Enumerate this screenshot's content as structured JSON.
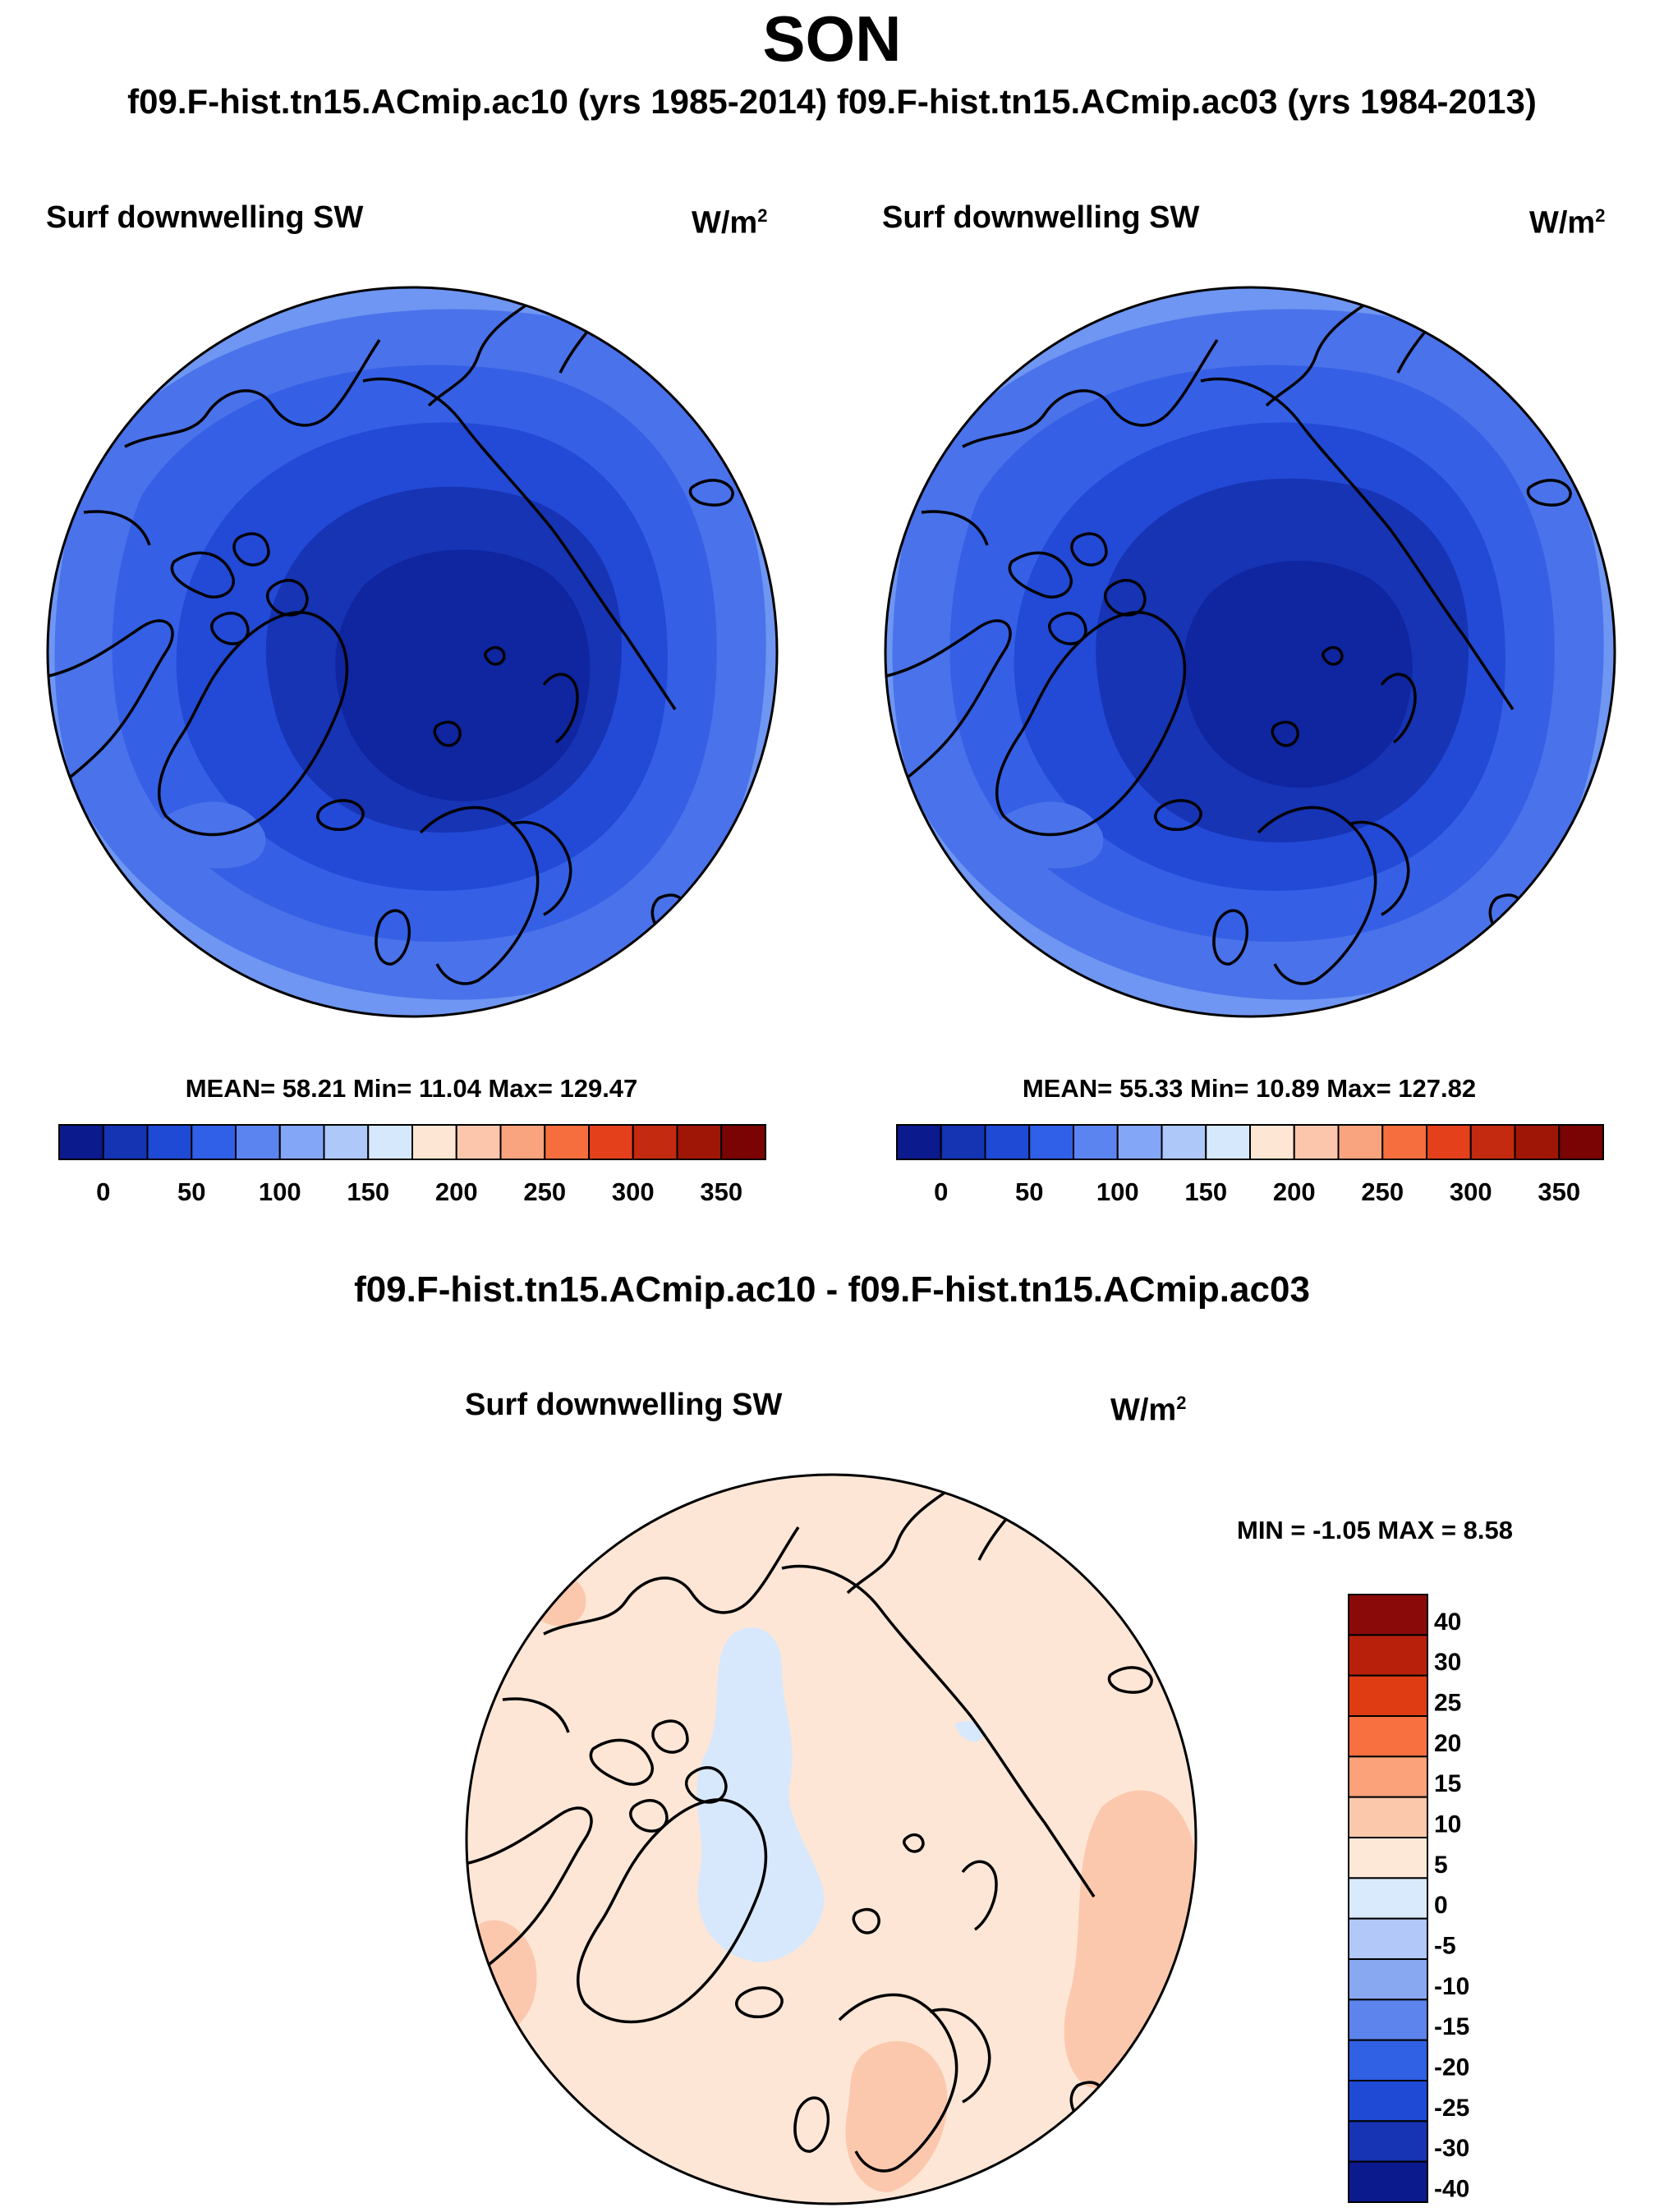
{
  "header": {
    "season": "SON",
    "case1_title": "f09.F-hist.tn15.ACmip.ac10 (yrs 1985-2014)",
    "case2_title": "f09.F-hist.tn15.ACmip.ac03 (yrs 1984-2013)",
    "diff_title": "f09.F-hist.tn15.ACmip.ac10 - f09.F-hist.tn15.ACmip.ac03"
  },
  "panels": {
    "left": {
      "variable": "Surf downwelling SW",
      "units_base": "W/m",
      "units_exp": "2",
      "stats": "MEAN=  58.21  Min=  11.04  Max= 129.47"
    },
    "right": {
      "variable": "Surf downwelling SW",
      "units_base": "W/m",
      "units_exp": "2",
      "stats": "MEAN=  55.33  Min=  10.89  Max= 127.82"
    },
    "diff": {
      "variable": "Surf downwelling SW",
      "units_base": "W/m",
      "units_exp": "2",
      "stats": "MIN =  -1.05 MAX =   8.58"
    }
  },
  "colorbars": {
    "abs": {
      "colors": [
        "#0b1a8c",
        "#1434b4",
        "#1f4ad6",
        "#3060e8",
        "#5c84f0",
        "#84a6f6",
        "#aec8fa",
        "#d6e8fc",
        "#fde6d4",
        "#fbc6ac",
        "#f9a47e",
        "#f76e3e",
        "#e4401c",
        "#c42a10",
        "#a01606",
        "#7a0404"
      ],
      "ticks": [
        "0",
        "50",
        "100",
        "150",
        "200",
        "250",
        "300",
        "350"
      ]
    },
    "diff": {
      "colors_top_to_bottom": [
        "#8a0a0a",
        "#b8200c",
        "#e03c14",
        "#f87040",
        "#fba27a",
        "#fcc8ac",
        "#fde8d8",
        "#d8eafc",
        "#b2c8f8",
        "#88a8f2",
        "#5c84ec",
        "#3060e4",
        "#1f4ad6",
        "#1634b4",
        "#0b1a8c"
      ],
      "ticks": [
        "40",
        "30",
        "25",
        "20",
        "15",
        "10",
        "5",
        "0",
        "-5",
        "-10",
        "-15",
        "-20",
        "-25",
        "-30",
        "-40"
      ]
    }
  },
  "map_colors": {
    "abs_outer": "#6e96f2",
    "abs_l1": "#4a72ea",
    "abs_l2": "#3560e6",
    "abs_l3": "#234ad6",
    "abs_l4": "#1634b4",
    "abs_core": "#0f26a0",
    "diff_base": "#fde6d6",
    "diff_pos": "#fbc8ae",
    "diff_neg": "#d8e8fc",
    "coast": "#000000"
  }
}
